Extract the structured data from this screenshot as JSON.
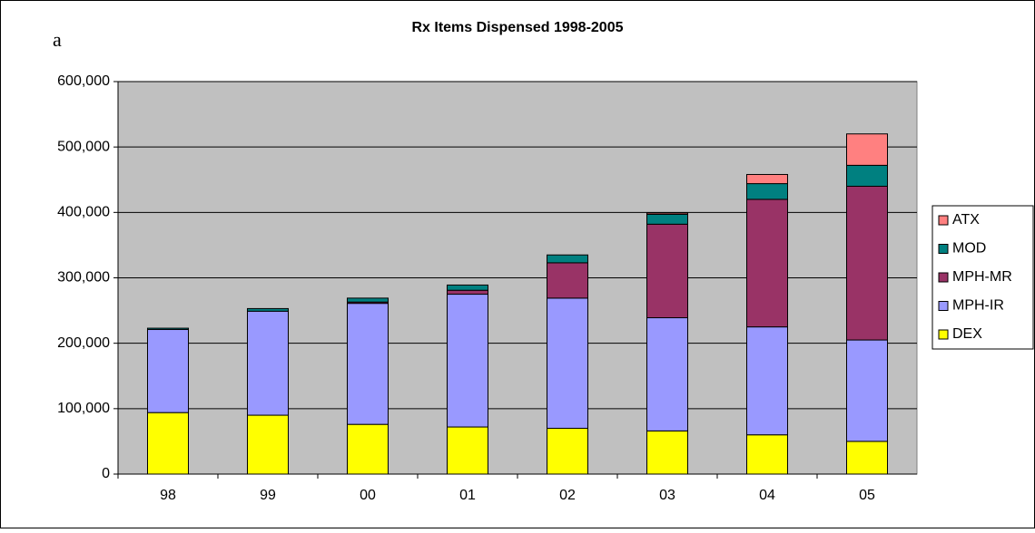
{
  "panel_label": "a",
  "chart_data": {
    "type": "stacked_bar",
    "title": "Rx Items Dispensed 1998-2005",
    "categories": [
      "98",
      "99",
      "00",
      "01",
      "02",
      "03",
      "04",
      "05"
    ],
    "series": [
      {
        "name": "DEX",
        "color": "#ffff00",
        "values": [
          94000,
          90000,
          76000,
          72000,
          70000,
          66000,
          60000,
          50000
        ]
      },
      {
        "name": "MPH-IR",
        "color": "#9999ff",
        "values": [
          127000,
          159000,
          185000,
          203000,
          199000,
          173000,
          165000,
          155000
        ]
      },
      {
        "name": "MPH-MR",
        "color": "#993366",
        "values": [
          0,
          0,
          2000,
          6000,
          54000,
          143000,
          195000,
          235000
        ]
      },
      {
        "name": "MOD",
        "color": "#008080",
        "values": [
          2000,
          4000,
          6000,
          8000,
          12000,
          15000,
          24000,
          32000
        ]
      },
      {
        "name": "ATX",
        "color": "#ff8080",
        "values": [
          0,
          0,
          0,
          0,
          0,
          2000,
          14000,
          48000
        ]
      }
    ],
    "ylim": [
      0,
      600000
    ],
    "yticks": [
      0,
      {
        "value": 100000,
        "label": "100,000"
      },
      {
        "value": 200000,
        "label": "200,000"
      },
      {
        "value": 300000,
        "label": "300,000"
      },
      {
        "value": 400000,
        "label": "400,000"
      },
      {
        "value": 500000,
        "label": "500,000"
      },
      {
        "value": 600000,
        "label": "600,000"
      }
    ],
    "grid": true,
    "legend": "right",
    "plot_background": "#c0c0c0"
  }
}
